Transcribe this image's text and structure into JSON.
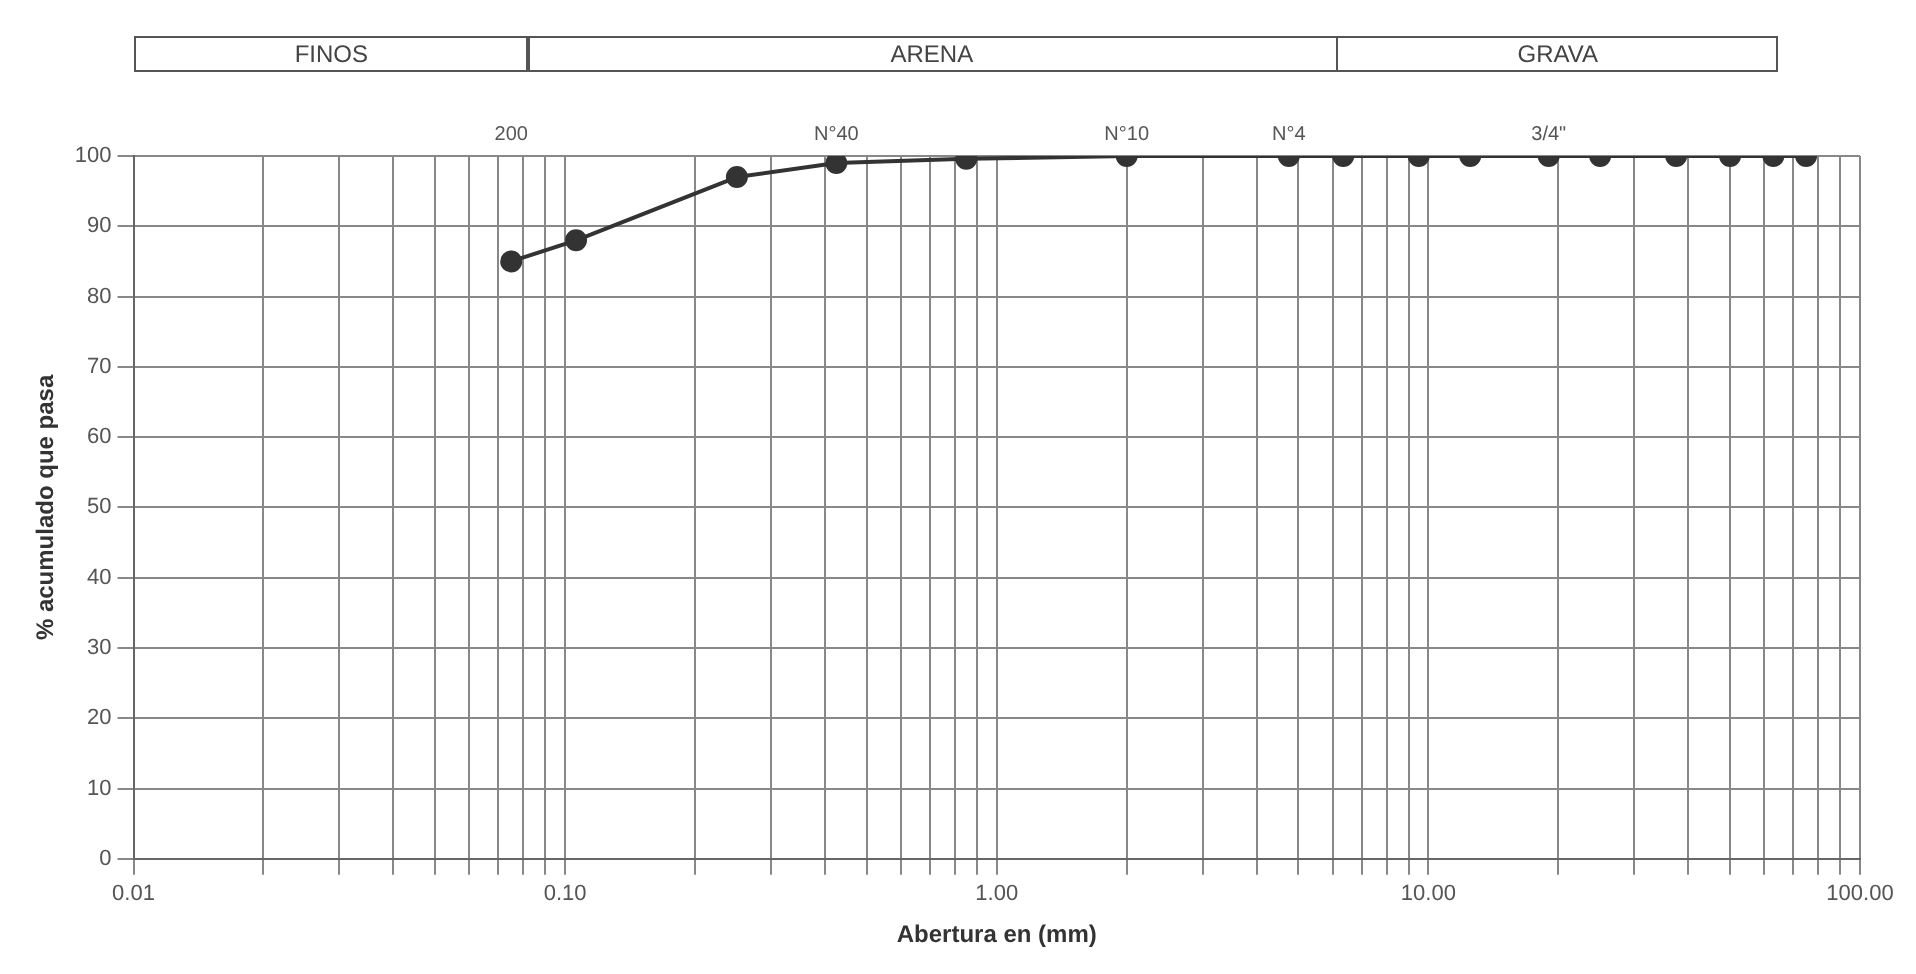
{
  "chart_data": {
    "type": "line",
    "xlabel": "Abertura en (mm)",
    "ylabel": "% acumulado que pasa",
    "x": [
      0.075,
      0.106,
      0.25,
      0.425,
      0.85,
      2,
      4.75,
      6.35,
      9.5,
      12.5,
      19,
      25,
      37.5,
      50,
      63,
      75
    ],
    "series": [
      {
        "color": "#333333",
        "values": [
          85,
          88,
          97,
          99,
          99.6,
          100,
          100,
          100,
          100,
          100,
          100,
          100,
          100,
          100,
          100,
          100
        ]
      }
    ],
    "log": "x",
    "xlim": [
      0.01,
      100
    ],
    "xticks": [
      {
        "value": 0.01,
        "label": "0.01"
      },
      {
        "value": 0.02,
        "label": null
      },
      {
        "value": 0.03,
        "label": null
      },
      {
        "value": 0.04,
        "label": null
      },
      {
        "value": 0.05,
        "label": null
      },
      {
        "value": 0.06,
        "label": null
      },
      {
        "value": 0.07,
        "label": null
      },
      {
        "value": 0.08,
        "label": null
      },
      {
        "value": 0.09,
        "label": null
      },
      {
        "value": 0.1,
        "label": "0.10"
      },
      {
        "value": 0.2,
        "label": null
      },
      {
        "value": 0.3,
        "label": null
      },
      {
        "value": 0.4,
        "label": null
      },
      {
        "value": 0.5,
        "label": null
      },
      {
        "value": 0.6,
        "label": null
      },
      {
        "value": 0.7,
        "label": null
      },
      {
        "value": 0.8,
        "label": null
      },
      {
        "value": 0.9,
        "label": null
      },
      {
        "value": 1,
        "label": "1.00"
      },
      {
        "value": 2,
        "label": null
      },
      {
        "value": 3,
        "label": null
      },
      {
        "value": 4,
        "label": null
      },
      {
        "value": 5,
        "label": null
      },
      {
        "value": 6,
        "label": null
      },
      {
        "value": 7,
        "label": null
      },
      {
        "value": 8,
        "label": null
      },
      {
        "value": 9,
        "label": null
      },
      {
        "value": 10,
        "label": "10.00"
      },
      {
        "value": 20,
        "label": null
      },
      {
        "value": 30,
        "label": null
      },
      {
        "value": 40,
        "label": null
      },
      {
        "value": 50,
        "label": null
      },
      {
        "value": 60,
        "label": null
      },
      {
        "value": 70,
        "label": null
      },
      {
        "value": 80,
        "label": null
      },
      {
        "value": 90,
        "label": null
      },
      {
        "value": 100,
        "label": "100.00"
      }
    ],
    "ylim": [
      0,
      100
    ],
    "yticks": [
      0,
      10,
      20,
      30,
      40,
      50,
      60,
      70,
      80,
      90,
      100
    ],
    "grid": true,
    "legend": false,
    "marker": "circle",
    "line_style": "solid",
    "annotations": [
      "FINOS",
      "ARENA",
      "GRAVA",
      "200",
      "N°40",
      "N°10",
      "N°4",
      "3/4\""
    ]
  }
}
